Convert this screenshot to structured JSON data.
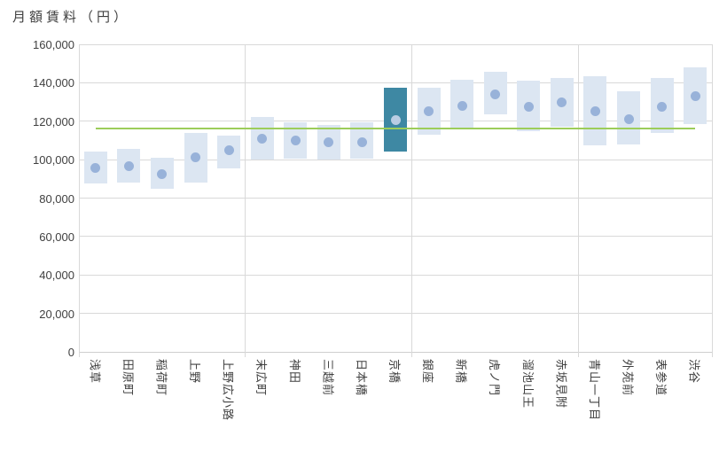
{
  "title": "月額賃料（円）",
  "chart_data": {
    "type": "bar",
    "subtype": "floating-range-bars-with-median-dots",
    "title": "月額賃料（円）",
    "ylabel": "月額賃料（円）",
    "xlabel": "",
    "legend": "none",
    "grid": "horizontal",
    "ylim": [
      0,
      160000
    ],
    "yticks": [
      0,
      20000,
      40000,
      60000,
      80000,
      100000,
      120000,
      140000,
      160000
    ],
    "ytick_labels": [
      "0",
      "20,000",
      "40,000",
      "60,000",
      "80,000",
      "100,000",
      "120,000",
      "140,000",
      "160,000"
    ],
    "categories": [
      "浅草",
      "田原町",
      "稲荷町",
      "上野",
      "上野広小路",
      "末広町",
      "神田",
      "三越前",
      "日本橋",
      "京橋",
      "銀座",
      "新橋",
      "虎ノ門",
      "溜池山王",
      "赤坂見附",
      "青山一丁目",
      "外苑前",
      "表参道",
      "渋谷"
    ],
    "series": [
      {
        "name": "賃料レンジ",
        "type": "range",
        "low": [
          87500,
          88000,
          85000,
          88000,
          95500,
          100000,
          100500,
          100000,
          100500,
          104000,
          113000,
          115500,
          123500,
          115000,
          117000,
          107500,
          108000,
          114000,
          118500
        ],
        "high": [
          104000,
          105500,
          101000,
          114000,
          112500,
          122000,
          119500,
          118000,
          119500,
          137500,
          137500,
          141500,
          145500,
          141000,
          142500,
          143500,
          135500,
          142500,
          148000
        ]
      },
      {
        "name": "賃料中央値",
        "type": "scatter",
        "values": [
          95500,
          96500,
          92500,
          101000,
          105000,
          111000,
          110000,
          109000,
          109000,
          120500,
          125000,
          128000,
          134000,
          127500,
          130000,
          125000,
          121000,
          127500,
          133000
        ]
      },
      {
        "name": "基準線",
        "type": "hline",
        "value": 116000
      }
    ],
    "highlight_index": 9,
    "group_separators_after_index": [
      4,
      9,
      14
    ],
    "colors": {
      "bar_fill": "#dce6f2",
      "dot_fill": "#98b2d9",
      "highlight_bar_fill": "#3e88a3",
      "highlight_dot_fill": "#b9cde3",
      "reference_line": "#9ccd5a",
      "gridline": "#d9d9d9",
      "axis_text": "#404040"
    }
  }
}
